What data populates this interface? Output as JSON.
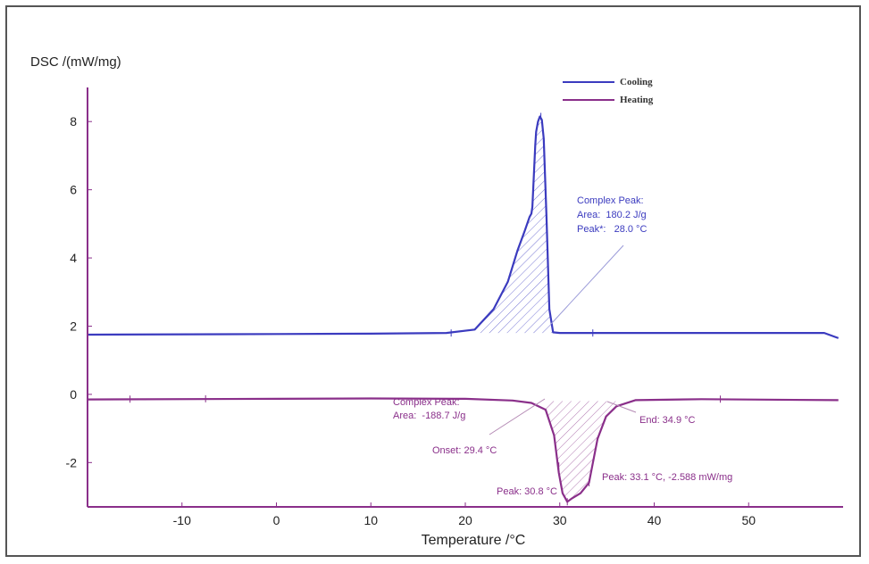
{
  "chart_data": {
    "type": "line",
    "title": "",
    "xlabel": "Temperature /°C",
    "ylabel": "DSC /(mW/mg)",
    "xlim": [
      -20,
      60
    ],
    "ylim": [
      -3.3,
      9.0
    ],
    "x_ticks": [
      -10,
      0,
      10,
      20,
      30,
      40,
      50
    ],
    "y_ticks": [
      -2,
      0,
      2,
      4,
      6,
      8
    ],
    "grid": false,
    "legend_position": "top-right",
    "series": [
      {
        "name": "Cooling",
        "color": "#3b3bbf",
        "x": [
          -20,
          0,
          10,
          18,
          21,
          23,
          24.5,
          25.5,
          26.3,
          26.8,
          27.0,
          27.1,
          27.4,
          27.5,
          27.7,
          27.9,
          28.1,
          28.3,
          28.6,
          28.9,
          29.3,
          30,
          40,
          58,
          59.5
        ],
        "y": [
          1.75,
          1.77,
          1.78,
          1.8,
          1.9,
          2.5,
          3.3,
          4.2,
          4.8,
          5.2,
          5.3,
          5.5,
          7.3,
          7.7,
          8.0,
          8.15,
          8.05,
          7.5,
          5.2,
          2.5,
          1.82,
          1.8,
          1.8,
          1.8,
          1.65
        ]
      },
      {
        "name": "Heating",
        "color": "#8a2f8a",
        "x": [
          -20,
          0,
          10,
          20,
          25,
          27,
          28.5,
          29.4,
          29.9,
          30.3,
          30.8,
          31.3,
          32.2,
          33.1,
          34.0,
          34.9,
          36.0,
          38.0,
          45,
          59.5
        ],
        "y": [
          -0.15,
          -0.13,
          -0.12,
          -0.13,
          -0.18,
          -0.25,
          -0.45,
          -1.2,
          -2.3,
          -2.9,
          -3.15,
          -3.05,
          -2.9,
          -2.59,
          -1.3,
          -0.65,
          -0.35,
          -0.17,
          -0.14,
          -0.17
        ]
      }
    ],
    "annotations": {
      "cooling_peak": {
        "label": "Complex Peak:",
        "area": "Area:  180.2 J/g",
        "peak": "Peak*:   28.0 °C"
      },
      "heating_peak": {
        "label": "Complex Peak:",
        "area": "Area:  -188.7 J/g"
      },
      "onset": "Onset: 29.4 °C",
      "end": "End: 34.9 °C",
      "peak_a": "Peak: 33.1 °C, -2.588 mW/mg",
      "peak_b": "Peak: 30.8 °C"
    }
  }
}
